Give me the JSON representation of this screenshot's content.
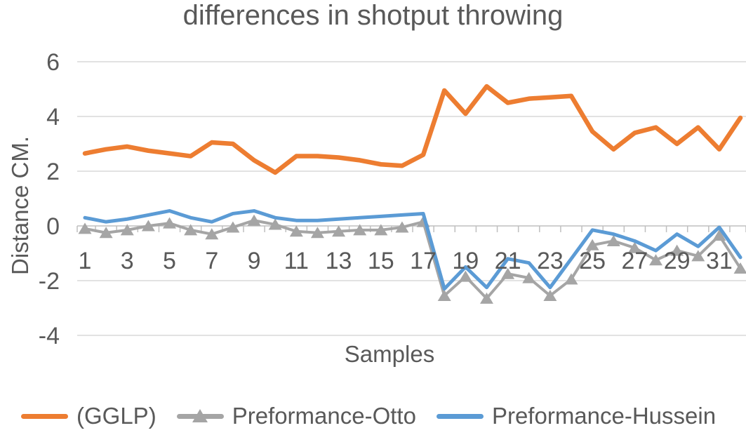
{
  "title": "differences in shotput throwing",
  "axes": {
    "y_title": "Distance CM.",
    "x_title": "Samples"
  },
  "colors": {
    "gglp_orange": "#ED7D31",
    "otto_gray": "#A5A5A5",
    "hussein_blue": "#5B9BD5",
    "gridline": "#D9D9D9",
    "axis_line": "#BFBFBF",
    "text": "#595959"
  },
  "chart_data": {
    "type": "line",
    "title": "differences in shotput throwing",
    "xlabel": "Samples",
    "ylabel": "Distance CM.",
    "ylim": [
      -4,
      6
    ],
    "grid": "horizontal",
    "legend_position": "bottom",
    "x": [
      1,
      2,
      3,
      4,
      5,
      6,
      7,
      8,
      9,
      10,
      11,
      12,
      13,
      14,
      15,
      16,
      17,
      18,
      19,
      20,
      21,
      22,
      23,
      24,
      25,
      26,
      27,
      28,
      29,
      30,
      31,
      32
    ],
    "x_tick_labels": [
      "1",
      "3",
      "5",
      "7",
      "9",
      "11",
      "13",
      "15",
      "17",
      "19",
      "21",
      "23",
      "25",
      "27",
      "29",
      "31"
    ],
    "y_ticks": [
      6,
      4,
      2,
      0,
      -2,
      -4
    ],
    "series": [
      {
        "name": "(GGLP)",
        "color": "#ED7D31",
        "marker": "none",
        "line_width": 6.5,
        "values": [
          2.65,
          2.8,
          2.9,
          2.75,
          2.65,
          2.55,
          3.05,
          3.0,
          2.4,
          1.95,
          2.55,
          2.55,
          2.5,
          2.4,
          2.25,
          2.2,
          2.6,
          4.95,
          4.1,
          5.1,
          4.5,
          4.65,
          4.7,
          4.75,
          3.45,
          2.8,
          3.4,
          3.6,
          3.0,
          3.6,
          2.8,
          3.95
        ]
      },
      {
        "name": "Preformance-Otto",
        "color": "#A5A5A5",
        "marker": "triangle",
        "line_width": 4,
        "values": [
          -0.1,
          -0.25,
          -0.15,
          0.0,
          0.1,
          -0.15,
          -0.3,
          -0.05,
          0.2,
          0.05,
          -0.2,
          -0.25,
          -0.2,
          -0.15,
          -0.15,
          -0.05,
          0.15,
          -2.55,
          -1.85,
          -2.65,
          -1.75,
          -1.9,
          -2.55,
          -1.95,
          -0.7,
          -0.55,
          -0.8,
          -1.25,
          -0.9,
          -1.1,
          -0.35,
          -1.55
        ]
      },
      {
        "name": "Preformance-Hussein",
        "color": "#5B9BD5",
        "marker": "none",
        "line_width": 5,
        "values": [
          0.3,
          0.15,
          0.25,
          0.4,
          0.55,
          0.3,
          0.15,
          0.45,
          0.55,
          0.3,
          0.2,
          0.2,
          0.25,
          0.3,
          0.35,
          0.4,
          0.45,
          -2.3,
          -1.5,
          -2.25,
          -1.2,
          -1.35,
          -2.25,
          -1.2,
          -0.15,
          -0.3,
          -0.55,
          -0.9,
          -0.3,
          -0.75,
          -0.05,
          -1.15
        ]
      }
    ]
  }
}
